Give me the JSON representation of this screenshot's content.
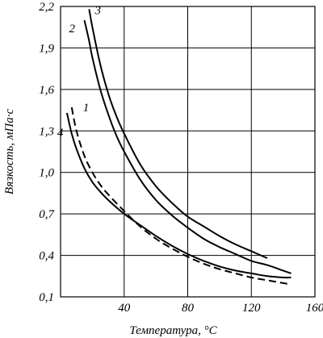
{
  "chart_data": {
    "type": "line",
    "xlabel": "Температура, °C",
    "ylabel": "Вязкость, мПа·с",
    "xlim": [
      0,
      160
    ],
    "ylim": [
      0.1,
      2.2
    ],
    "x_ticks": [
      40,
      80,
      120,
      160
    ],
    "x_tick_labels": [
      "40",
      "80",
      "120",
      "160"
    ],
    "y_ticks": [
      0.1,
      0.4,
      0.7,
      1.0,
      1.3,
      1.6,
      1.9,
      2.2
    ],
    "y_tick_labels": [
      "0,1",
      "0,4",
      "0,7",
      "1,0",
      "1,3",
      "1,6",
      "1,9",
      "2,2"
    ],
    "grid": true,
    "series": [
      {
        "name": "1",
        "style": "dashed",
        "x": [
          7,
          10,
          15,
          20,
          25,
          30,
          40,
          50,
          60,
          70,
          80,
          90,
          100,
          110,
          120,
          130,
          140,
          145
        ],
        "y": [
          1.47,
          1.3,
          1.12,
          1.0,
          0.91,
          0.84,
          0.72,
          0.61,
          0.52,
          0.45,
          0.39,
          0.34,
          0.3,
          0.27,
          0.24,
          0.22,
          0.2,
          0.19
        ]
      },
      {
        "name": "2",
        "style": "solid",
        "x": [
          15,
          18,
          20,
          25,
          30,
          35,
          40,
          50,
          60,
          70,
          80,
          90,
          100,
          110,
          120,
          130,
          140,
          145
        ],
        "y": [
          2.1,
          1.95,
          1.83,
          1.6,
          1.42,
          1.27,
          1.15,
          0.95,
          0.8,
          0.69,
          0.6,
          0.52,
          0.46,
          0.41,
          0.36,
          0.33,
          0.29,
          0.27
        ]
      },
      {
        "name": "3",
        "style": "solid",
        "x": [
          18,
          20,
          25,
          30,
          35,
          40,
          50,
          60,
          70,
          80,
          90,
          100,
          110,
          120,
          130
        ],
        "y": [
          2.18,
          2.05,
          1.78,
          1.57,
          1.41,
          1.28,
          1.06,
          0.9,
          0.78,
          0.68,
          0.61,
          0.54,
          0.48,
          0.43,
          0.38
        ]
      },
      {
        "name": "4",
        "style": "solid",
        "x": [
          4,
          7,
          10,
          15,
          20,
          25,
          30,
          40,
          50,
          60,
          70,
          80,
          90,
          100,
          110,
          120,
          130,
          140,
          145
        ],
        "y": [
          1.43,
          1.28,
          1.17,
          1.03,
          0.93,
          0.86,
          0.8,
          0.7,
          0.62,
          0.54,
          0.47,
          0.41,
          0.36,
          0.32,
          0.29,
          0.27,
          0.25,
          0.24,
          0.24
        ]
      }
    ]
  }
}
